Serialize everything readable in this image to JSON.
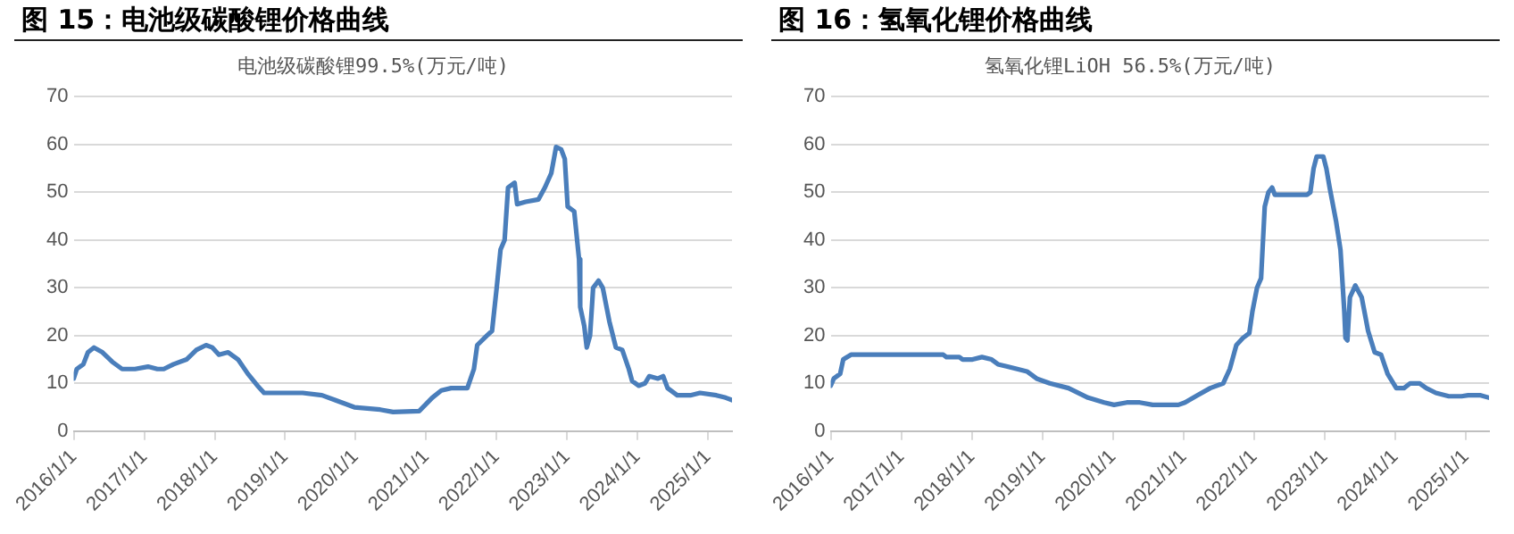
{
  "chart_data": [
    {
      "type": "line",
      "title": "图 15：电池级碳酸锂价格曲线",
      "subtitle": "电池级碳酸锂99.5%(万元/吨)",
      "series": [
        {
          "color": "#4a7ebb",
          "x": [
            "2016-01-01",
            "2016-01-17",
            "2016-02-20",
            "2016-03-15",
            "2016-04-15",
            "2016-05-29",
            "2016-07-19",
            "2016-09-08",
            "2016-11-14",
            "2017-01-20",
            "2017-03-10",
            "2017-04-12",
            "2017-06-02",
            "2017-08-08",
            "2017-09-28",
            "2017-11-17",
            "2017-12-20",
            "2018-01-23",
            "2018-03-12",
            "2018-05-02",
            "2018-06-22",
            "2018-08-11",
            "2018-09-14",
            "2018-12-23",
            "2019-04-02",
            "2019-07-11",
            "2019-09-17",
            "2019-12-26",
            "2020-05-08",
            "2020-07-14",
            "2020-11-26",
            "2021-02-02",
            "2021-03-21",
            "2021-05-11",
            "2021-08-03",
            "2021-09-06",
            "2021-09-23",
            "2021-11-12",
            "2021-12-09",
            "2022-01-02",
            "2022-01-22",
            "2022-02-12",
            "2022-03-02",
            "2022-04-05",
            "2022-04-18",
            "2022-06-01",
            "2022-08-06",
            "2022-09-09",
            "2022-10-12",
            "2022-11-06",
            "2022-12-02",
            "2022-12-21",
            "2023-01-05",
            "2023-02-08",
            "2023-03-05",
            "2023-03-11",
            "2023-04-01",
            "2023-04-14",
            "2023-05-01",
            "2023-05-17",
            "2023-06-14",
            "2023-07-06",
            "2023-08-09",
            "2023-09-12",
            "2023-10-15",
            "2023-11-18",
            "2023-12-05",
            "2024-01-08",
            "2024-02-10",
            "2024-03-03",
            "2024-04-17",
            "2024-05-14",
            "2024-06-06",
            "2024-07-26",
            "2024-10-02",
            "2024-11-21",
            "2025-02-14",
            "2025-04-03",
            "2025-05-06"
          ],
          "values": [
            11,
            13,
            14,
            16.5,
            17.5,
            16.5,
            14.5,
            13,
            13,
            13.5,
            13,
            13,
            14,
            15,
            17,
            18,
            17.5,
            16,
            16.5,
            15,
            12,
            9.5,
            8,
            8,
            8,
            7.5,
            6.5,
            5,
            4.5,
            4,
            4.2,
            7,
            8.5,
            9,
            9,
            13,
            18,
            20,
            21,
            30,
            38,
            40,
            51,
            52,
            47.5,
            48,
            48.5,
            51,
            54,
            59.5,
            59,
            57,
            47,
            46,
            36,
            26,
            22,
            17.5,
            20,
            30,
            31.5,
            30,
            23,
            17.5,
            17,
            13,
            10.5,
            9.5,
            10,
            11.5,
            11,
            11.5,
            9,
            7.5,
            7.5,
            8,
            7.5,
            7,
            6.5
          ]
        }
      ],
      "xlim": [
        "2016-01-01",
        "2025-05-06"
      ],
      "xticks": [
        {
          "value": "2016-01-01",
          "label": "2016/1/1"
        },
        {
          "value": "2017-01-01",
          "label": "2017/1/1"
        },
        {
          "value": "2018-01-01",
          "label": "2018/1/1"
        },
        {
          "value": "2019-01-01",
          "label": "2019/1/1"
        },
        {
          "value": "2020-01-01",
          "label": "2020/1/1"
        },
        {
          "value": "2021-01-01",
          "label": "2021/1/1"
        },
        {
          "value": "2022-01-01",
          "label": "2022/1/1"
        },
        {
          "value": "2023-01-01",
          "label": "2023/1/1"
        },
        {
          "value": "2024-01-01",
          "label": "2024/1/1"
        },
        {
          "value": "2025-01-01",
          "label": "2025/1/1"
        }
      ],
      "ylim": [
        0,
        70
      ],
      "yticks": [
        0,
        10,
        20,
        30,
        40,
        50,
        60,
        70
      ],
      "grid": "y"
    },
    {
      "type": "line",
      "title": "图 16：氢氧化锂价格曲线",
      "subtitle": "氢氧化锂LiOH 56.5%(万元/吨)",
      "series": [
        {
          "color": "#4a7ebb",
          "x": [
            "2016-01-01",
            "2016-01-17",
            "2016-02-19",
            "2016-03-06",
            "2016-04-15",
            "2016-08-20",
            "2017-01-02",
            "2017-05-13",
            "2017-08-06",
            "2017-08-22",
            "2017-10-28",
            "2017-11-14",
            "2018-01-04",
            "2018-02-22",
            "2018-04-13",
            "2018-05-16",
            "2018-07-04",
            "2018-08-24",
            "2018-10-13",
            "2018-12-02",
            "2019-02-08",
            "2019-05-16",
            "2019-08-25",
            "2019-11-17",
            "2020-01-07",
            "2020-03-13",
            "2020-05-19",
            "2020-07-25",
            "2020-12-05",
            "2021-01-08",
            "2021-03-13",
            "2021-05-19",
            "2021-07-25",
            "2021-08-28",
            "2021-10-01",
            "2021-11-04",
            "2021-12-07",
            "2021-12-23",
            "2022-01-16",
            "2022-02-06",
            "2022-02-25",
            "2022-03-16",
            "2022-04-04",
            "2022-04-18",
            "2022-06-24",
            "2022-10-02",
            "2022-10-19",
            "2022-11-05",
            "2022-11-21",
            "2022-12-25",
            "2023-01-10",
            "2023-01-27",
            "2023-03-01",
            "2023-03-24",
            "2023-04-13",
            "2023-04-19",
            "2023-04-29",
            "2023-05-12",
            "2023-06-09",
            "2023-07-12",
            "2023-08-14",
            "2023-09-17",
            "2023-10-20",
            "2023-11-23",
            "2024-01-07",
            "2024-02-16",
            "2024-03-19",
            "2024-05-07",
            "2024-06-10",
            "2024-07-30",
            "2024-10-05",
            "2024-12-10",
            "2025-01-13",
            "2025-03-19",
            "2025-05-01"
          ],
          "values": [
            9.5,
            11,
            12,
            15,
            16,
            16,
            16,
            16,
            16,
            15.5,
            15.5,
            15,
            15,
            15.5,
            15,
            14,
            13.5,
            13,
            12.5,
            11,
            10,
            9,
            7,
            6,
            5.5,
            6,
            6,
            5.5,
            5.5,
            6,
            7.5,
            9,
            10,
            13,
            18,
            19.5,
            20.5,
            25,
            30,
            32,
            47,
            50,
            51,
            49.5,
            49.5,
            49.5,
            50,
            55,
            57.5,
            57.5,
            55,
            51,
            44,
            38,
            25,
            19.5,
            19,
            28,
            30.5,
            28,
            21,
            16.5,
            16,
            12,
            9,
            9,
            10,
            10,
            9,
            8,
            7.3,
            7.3,
            7.5,
            7.5,
            7
          ]
        }
      ],
      "xlim": [
        "2016-01-01",
        "2025-05-01"
      ],
      "xticks": [
        {
          "value": "2016-01-01",
          "label": "2016/1/1"
        },
        {
          "value": "2017-01-01",
          "label": "2017/1/1"
        },
        {
          "value": "2018-01-01",
          "label": "2018/1/1"
        },
        {
          "value": "2019-01-01",
          "label": "2019/1/1"
        },
        {
          "value": "2020-01-01",
          "label": "2020/1/1"
        },
        {
          "value": "2021-01-01",
          "label": "2021/1/1"
        },
        {
          "value": "2022-01-01",
          "label": "2022/1/1"
        },
        {
          "value": "2023-01-01",
          "label": "2023/1/1"
        },
        {
          "value": "2024-01-01",
          "label": "2024/1/1"
        },
        {
          "value": "2025-01-01",
          "label": "2025/1/1"
        }
      ],
      "ylim": [
        0,
        70
      ],
      "yticks": [
        0,
        10,
        20,
        30,
        40,
        50,
        60,
        70
      ],
      "grid": "y"
    }
  ]
}
